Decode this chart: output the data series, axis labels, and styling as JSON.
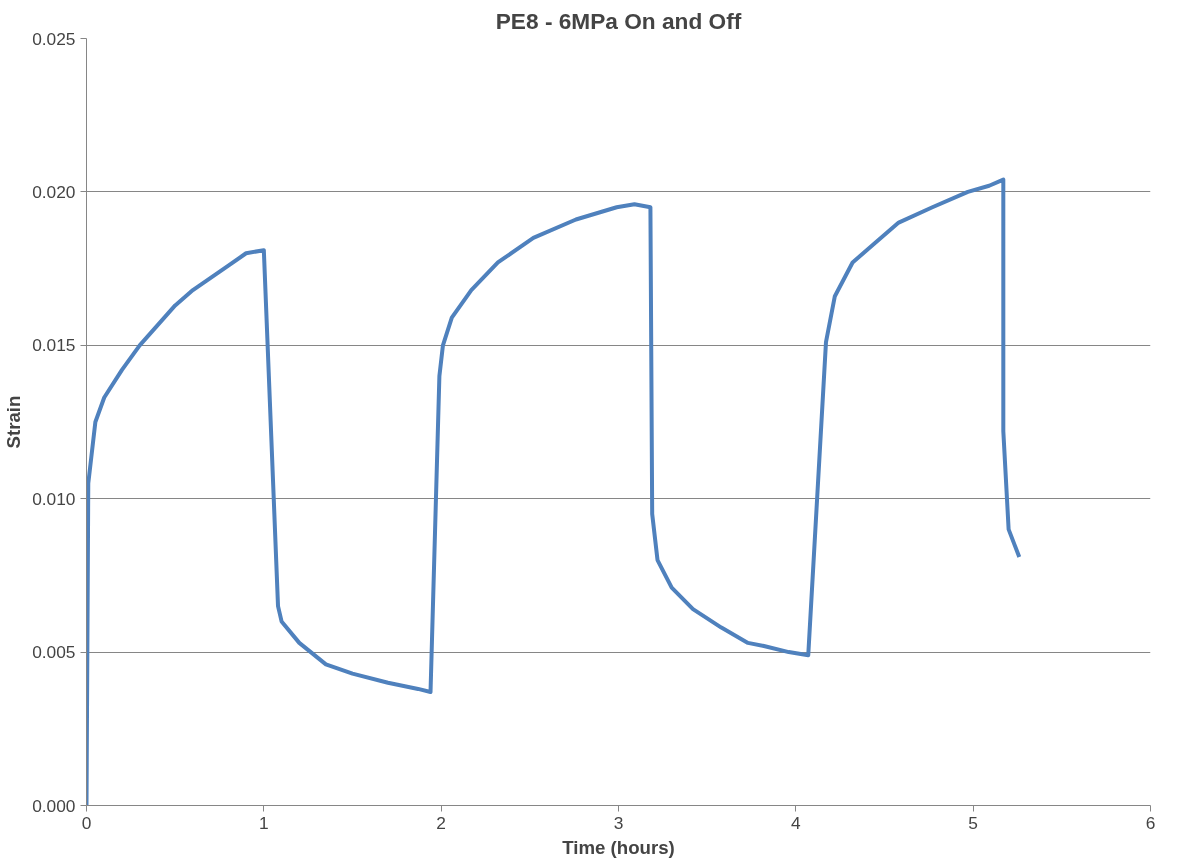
{
  "chart_data": {
    "type": "line",
    "title": "PE8 - 6MPa On and Off",
    "xlabel": "Time (hours)",
    "ylabel": "Strain",
    "xlim": [
      0,
      6
    ],
    "xticks": [
      0,
      1,
      2,
      3,
      4,
      5,
      6
    ],
    "ylim": [
      0,
      0.025
    ],
    "yticks": [
      {
        "value": 0,
        "label": "0.000"
      },
      {
        "value": 0.005,
        "label": "0.005"
      },
      {
        "value": 0.01,
        "label": "0.010"
      },
      {
        "value": 0.015,
        "label": "0.015"
      },
      {
        "value": 0.02,
        "label": "0.020"
      },
      {
        "value": 0.025,
        "label": "0.025"
      }
    ],
    "grid": "y",
    "marker": "none",
    "line_style": "solid",
    "series": [
      {
        "color": "#4f81bd",
        "x": [
          0,
          0.01,
          0.05,
          0.1,
          0.2,
          0.3,
          0.5,
          0.6,
          0.8,
          0.9,
          1.0,
          1.08,
          1.1,
          1.2,
          1.35,
          1.5,
          1.7,
          1.87,
          1.94,
          1.99,
          2.01,
          2.06,
          2.17,
          2.32,
          2.52,
          2.76,
          2.99,
          3.09,
          3.18,
          3.19,
          3.22,
          3.3,
          3.42,
          3.58,
          3.73,
          3.82,
          3.96,
          4.07,
          4.17,
          4.22,
          4.32,
          4.44,
          4.58,
          4.77,
          4.97,
          5.09,
          5.17,
          5.17,
          5.2,
          5.26
        ],
        "values": [
          0,
          0.0105,
          0.0125,
          0.0133,
          0.0142,
          0.015,
          0.0163,
          0.0168,
          0.0176,
          0.018,
          0.0181,
          0.0065,
          0.006,
          0.0053,
          0.0046,
          0.0043,
          0.004,
          0.0038,
          0.0037,
          0.014,
          0.015,
          0.0159,
          0.0168,
          0.0177,
          0.0185,
          0.0191,
          0.0195,
          0.0196,
          0.0195,
          0.0095,
          0.008,
          0.0071,
          0.0064,
          0.0058,
          0.0053,
          0.0052,
          0.005,
          0.0049,
          0.0151,
          0.0166,
          0.0177,
          0.0183,
          0.019,
          0.0195,
          0.02,
          0.0202,
          0.0204,
          0.0122,
          0.009,
          0.0081
        ]
      }
    ]
  }
}
